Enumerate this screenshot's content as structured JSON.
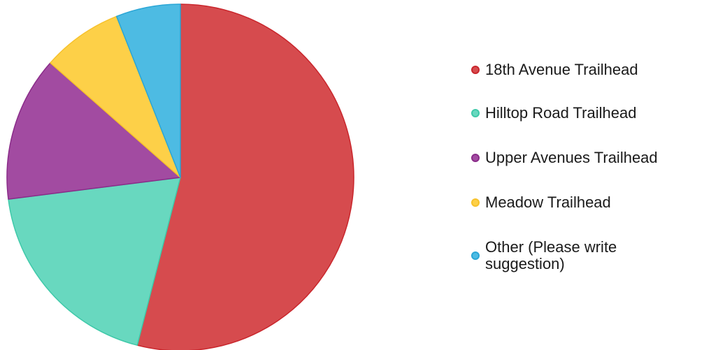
{
  "chart_data": {
    "type": "pie",
    "categories": [
      "18th Avenue Trailhead",
      "Hilltop Road Trailhead",
      "Upper Avenues Trailhead",
      "Meadow Trailhead",
      "Other (Please write suggestion)"
    ],
    "values": [
      54,
      19,
      13.5,
      7.5,
      6
    ],
    "colors": [
      "#d64b4e",
      "#68d8bf",
      "#a24ba1",
      "#fdd048",
      "#4dbbe3"
    ],
    "stroke_colors": [
      "#c9262c",
      "#3fc9a9",
      "#8a2c89",
      "#f7c22c",
      "#2aa6d6"
    ],
    "legend_placement": "right"
  },
  "legend": {
    "items": [
      {
        "label": "18th Avenue Trailhead"
      },
      {
        "label": "Hilltop Road Trailhead"
      },
      {
        "label": "Upper Avenues Trailhead"
      },
      {
        "label": "Meadow Trailhead"
      },
      {
        "label": "Other (Please write suggestion)"
      }
    ]
  }
}
